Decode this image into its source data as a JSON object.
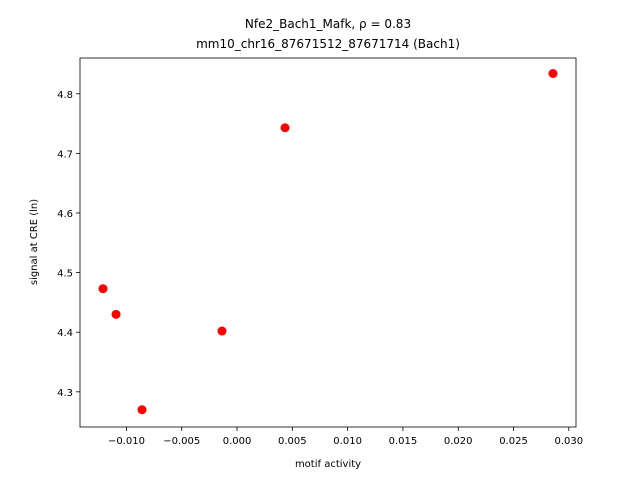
{
  "chart_data": {
    "type": "scatter",
    "title": "Nfe2_Bach1_Mafk, ρ = 0.83",
    "subtitle": "mm10_chr16_87671512_87671714 (Bach1)",
    "x_label": "motif activity",
    "y_label": "signal at CRE (ln)",
    "series": [
      {
        "color": "#ff0000",
        "x": [
          0.02857,
          0.00434,
          -0.01212,
          -0.01094,
          -0.00136,
          -0.00859
        ],
        "values": [
          4.834,
          4.743,
          4.473,
          4.43,
          4.402,
          4.27
        ]
      }
    ],
    "xlim": [
      -0.0142,
      0.03065
    ],
    "ylim": [
      4.241,
      4.86
    ],
    "xticks": [
      {
        "value": -0.01,
        "label": "−0.010"
      },
      {
        "value": -0.005,
        "label": "−0.005"
      },
      {
        "value": 0,
        "label": "0.000"
      },
      {
        "value": 0.005,
        "label": "0.005"
      },
      {
        "value": 0.01,
        "label": "0.010"
      },
      {
        "value": 0.015,
        "label": "0.015"
      },
      {
        "value": 0.02,
        "label": "0.020"
      },
      {
        "value": 0.025,
        "label": "0.025"
      },
      {
        "value": 0.03,
        "label": "0.030"
      }
    ],
    "yticks": [
      4.3,
      4.4,
      4.5,
      4.6,
      4.7,
      4.8
    ],
    "grid": false
  }
}
